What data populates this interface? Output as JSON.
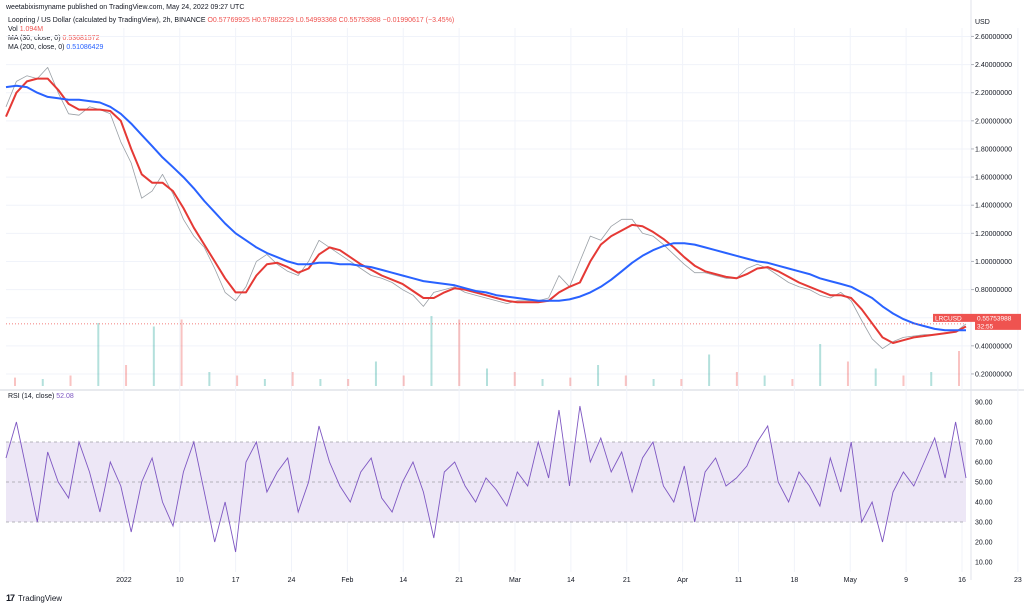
{
  "header": "weetabixismyname published on TradingView.com, May 24, 2022 09:27 UTC",
  "main_legend": {
    "symbol": "Loopring / US Dollar (calculated by TradingView), 2h, BINANCE",
    "ohlc": "O0.57769925 H0.57882229 L0.54993368 C0.55753988 −0.01990617 (−3.45%)",
    "vol_label": "Vol",
    "vol_value": "1.094M",
    "ma30_label": "MA (30, close, 0)",
    "ma30_value": "0.53681572",
    "ma200_label": "MA (200, close, 0)",
    "ma200_value": "0.51086429"
  },
  "rsi_legend": {
    "label": "RSI (14, close)",
    "value": "52.08"
  },
  "price_tag": {
    "symbol": "LRCUSD",
    "price": "0.55753988",
    "countdown": "32:55"
  },
  "footer": {
    "logo": "17",
    "brand": "TradingView"
  },
  "colors": {
    "up": "#26a69a",
    "down": "#ef5350",
    "ma30": "#e53935",
    "ma200": "#2962ff",
    "rsi": "#7e57c2",
    "rsi_band": "#ede7f6",
    "grid": "#f0f3fa",
    "axis_text": "#131722"
  },
  "chart_data": [
    {
      "type": "line",
      "title": "Loopring / US Dollar (calculated by TradingView), 2h, BINANCE",
      "xlabel": "",
      "ylabel": "USD",
      "x_ticks": [
        "2022",
        "10",
        "17",
        "24",
        "Feb",
        "14",
        "21",
        "Mar",
        "14",
        "21",
        "Apr",
        "11",
        "18",
        "May",
        "9",
        "16",
        "23"
      ],
      "x_tick_labels": [
        "",
        "2022",
        "10",
        "17",
        "24",
        "Feb",
        "14",
        "21",
        "Mar",
        "14",
        "21",
        "Apr",
        "11",
        "18",
        "May",
        "9",
        "16",
        "23"
      ],
      "y_ticks": [
        "0.20000000",
        "0.40000000",
        "0.60000000",
        "0.80000000",
        "1.00000000",
        "1.20000000",
        "1.40000000",
        "1.60000000",
        "1.80000000",
        "2.00000000",
        "2.20000000",
        "2.40000000",
        "2.60000000"
      ],
      "ylim": [
        0.1,
        2.66
      ],
      "series": [
        {
          "name": "LRCUSD",
          "values": [
            2.1,
            2.28,
            2.32,
            2.3,
            2.38,
            2.2,
            2.05,
            2.04,
            2.1,
            2.08,
            2.05,
            1.85,
            1.7,
            1.45,
            1.5,
            1.62,
            1.48,
            1.3,
            1.18,
            1.1,
            0.95,
            0.78,
            0.72,
            0.82,
            1.0,
            1.05,
            0.98,
            0.93,
            0.9,
            1.0,
            1.15,
            1.1,
            1.05,
            1.0,
            0.95,
            0.9,
            0.88,
            0.85,
            0.8,
            0.76,
            0.68,
            0.78,
            0.8,
            0.82,
            0.78,
            0.76,
            0.74,
            0.72,
            0.7,
            0.72,
            0.72,
            0.72,
            0.74,
            0.9,
            0.82,
            1.0,
            1.18,
            1.15,
            1.25,
            1.3,
            1.3,
            1.2,
            1.18,
            1.12,
            1.05,
            0.98,
            0.92,
            0.92,
            0.9,
            0.88,
            0.88,
            0.95,
            0.98,
            0.95,
            0.9,
            0.85,
            0.82,
            0.8,
            0.76,
            0.74,
            0.78,
            0.72,
            0.58,
            0.45,
            0.38,
            0.43,
            0.46,
            0.47,
            0.48,
            0.48,
            0.49,
            0.5,
            0.556
          ]
        },
        {
          "name": "MA (30, close, 0)",
          "values": [
            2.03,
            2.2,
            2.28,
            2.3,
            2.3,
            2.22,
            2.12,
            2.08,
            2.08,
            2.08,
            2.07,
            2.0,
            1.8,
            1.62,
            1.56,
            1.56,
            1.5,
            1.38,
            1.24,
            1.12,
            1.0,
            0.88,
            0.78,
            0.78,
            0.9,
            0.98,
            0.99,
            0.96,
            0.92,
            0.95,
            1.05,
            1.1,
            1.08,
            1.03,
            0.98,
            0.94,
            0.9,
            0.87,
            0.84,
            0.79,
            0.74,
            0.74,
            0.78,
            0.81,
            0.8,
            0.78,
            0.76,
            0.74,
            0.72,
            0.71,
            0.71,
            0.71,
            0.72,
            0.78,
            0.82,
            0.85,
            1.0,
            1.12,
            1.18,
            1.22,
            1.26,
            1.25,
            1.21,
            1.16,
            1.1,
            1.03,
            0.97,
            0.93,
            0.91,
            0.89,
            0.88,
            0.91,
            0.95,
            0.96,
            0.93,
            0.89,
            0.85,
            0.82,
            0.79,
            0.76,
            0.76,
            0.74,
            0.66,
            0.56,
            0.46,
            0.42,
            0.44,
            0.46,
            0.47,
            0.48,
            0.49,
            0.5,
            0.537
          ]
        },
        {
          "name": "MA (200, close, 0)",
          "values": [
            2.24,
            2.25,
            2.24,
            2.2,
            2.17,
            2.16,
            2.15,
            2.15,
            2.14,
            2.13,
            2.1,
            2.05,
            1.98,
            1.9,
            1.82,
            1.74,
            1.67,
            1.6,
            1.52,
            1.43,
            1.35,
            1.27,
            1.2,
            1.15,
            1.1,
            1.06,
            1.03,
            1.0,
            0.98,
            0.98,
            0.99,
            0.99,
            0.98,
            0.98,
            0.97,
            0.96,
            0.94,
            0.92,
            0.9,
            0.88,
            0.86,
            0.85,
            0.84,
            0.83,
            0.81,
            0.79,
            0.78,
            0.76,
            0.75,
            0.74,
            0.73,
            0.72,
            0.72,
            0.72,
            0.73,
            0.75,
            0.78,
            0.82,
            0.87,
            0.93,
            0.99,
            1.04,
            1.08,
            1.11,
            1.13,
            1.13,
            1.12,
            1.1,
            1.08,
            1.06,
            1.04,
            1.02,
            1.0,
            0.99,
            0.97,
            0.95,
            0.93,
            0.91,
            0.88,
            0.86,
            0.84,
            0.82,
            0.78,
            0.74,
            0.68,
            0.63,
            0.59,
            0.56,
            0.54,
            0.52,
            0.51,
            0.51,
            0.511
          ]
        }
      ],
      "volume_spikes": [
        0.12,
        0.1,
        0.15,
        0.9,
        0.3,
        0.85,
        0.95,
        0.2,
        0.15,
        0.1,
        0.2,
        0.1,
        0.1,
        0.35,
        0.15,
        1.0,
        0.95,
        0.25,
        0.2,
        0.1,
        0.12,
        0.3,
        0.15,
        0.1,
        0.1,
        0.45,
        0.2,
        0.15,
        0.1,
        0.6,
        0.35,
        0.25,
        0.15,
        0.2,
        0.5
      ]
    },
    {
      "type": "line",
      "title": "RSI (14, close)",
      "xlabel": "",
      "ylabel": "",
      "y_ticks": [
        "10.00",
        "20.00",
        "30.00",
        "40.00",
        "50.00",
        "60.00",
        "70.00",
        "80.00",
        "90.00"
      ],
      "ylim": [
        5,
        93
      ],
      "band": [
        30,
        70
      ],
      "midline": 50,
      "series": [
        {
          "name": "RSI (14, close)",
          "values": [
            62,
            80,
            55,
            30,
            65,
            50,
            42,
            70,
            55,
            35,
            60,
            48,
            25,
            50,
            62,
            40,
            28,
            55,
            70,
            45,
            20,
            40,
            15,
            60,
            70,
            45,
            55,
            62,
            35,
            50,
            78,
            60,
            48,
            40,
            55,
            62,
            42,
            35,
            50,
            60,
            45,
            22,
            55,
            60,
            48,
            40,
            52,
            46,
            38,
            55,
            48,
            70,
            52,
            86,
            48,
            88,
            60,
            72,
            55,
            65,
            45,
            62,
            70,
            48,
            40,
            58,
            30,
            55,
            62,
            48,
            52,
            58,
            70,
            78,
            50,
            40,
            55,
            48,
            38,
            62,
            45,
            70,
            30,
            40,
            20,
            45,
            55,
            48,
            60,
            72,
            52,
            80,
            52
          ]
        }
      ]
    }
  ]
}
